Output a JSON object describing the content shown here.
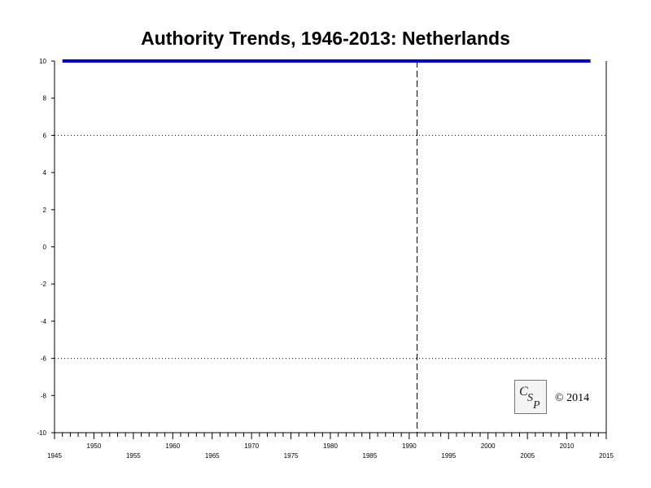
{
  "chart_data": {
    "type": "line",
    "title": "Authority Trends, 1946-2013: Netherlands",
    "xlabel": "",
    "ylabel": "",
    "xlim": [
      1945,
      2015
    ],
    "ylim": [
      -10,
      10
    ],
    "x_major_ticks": [
      1945,
      1955,
      1965,
      1975,
      1985,
      1995,
      2005,
      2015
    ],
    "x_offset_labels": [
      1950,
      1960,
      1970,
      1980,
      1990,
      2000,
      2010
    ],
    "y_ticks": [
      10,
      8,
      6,
      4,
      2,
      0,
      -2,
      -4,
      -6,
      -8,
      -10
    ],
    "series": [
      {
        "x": [
          1946,
          2013
        ],
        "y": [
          10,
          10
        ],
        "color": "#0000cc"
      }
    ],
    "reference_lines": {
      "horizontal_dotted": [
        6,
        -6
      ],
      "vertical_dashed": [
        1991
      ]
    },
    "grid": false
  },
  "logo_text": "CSP",
  "copyright": "© 2014"
}
